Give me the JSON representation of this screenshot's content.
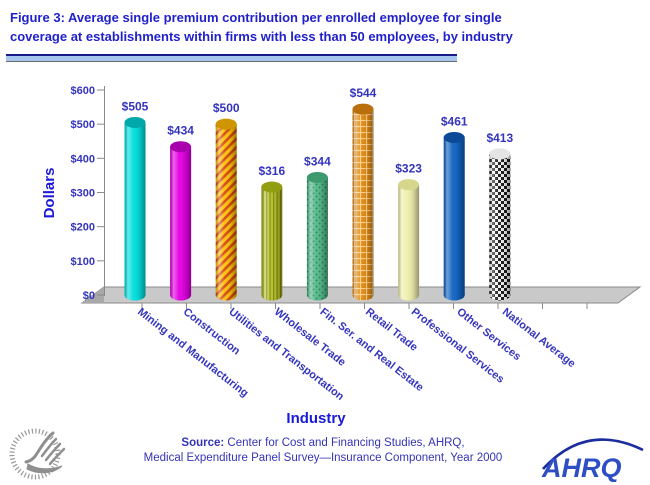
{
  "title": {
    "line1": "Figure 3: Average single premium contribution per enrolled employee for single",
    "line2": "coverage at establishments within firms with less than 50 employees, by industry"
  },
  "chart_data": {
    "type": "bar",
    "title": "Average single premium contribution per enrolled employee, firms with less than 50 employees, by industry",
    "xlabel": "Industry",
    "ylabel": "Dollars",
    "ylim": [
      0,
      600
    ],
    "ytick_step": 100,
    "ytick_labels": [
      "$0",
      "$100",
      "$200",
      "$300",
      "$400",
      "$500",
      "$600"
    ],
    "grid": false,
    "legend": "none",
    "categories": [
      "Mining and Manufacturing",
      "Construction",
      "Utilities and Transportation",
      "Wholesale Trade",
      "Fin. Ser. and Real Estate",
      "Retail Trade",
      "Professional Services",
      "Other Services",
      "National Average"
    ],
    "values": [
      505,
      434,
      500,
      316,
      344,
      544,
      323,
      461,
      413
    ],
    "value_labels": [
      "$505",
      "$434",
      "$500",
      "$316",
      "$344",
      "$544",
      "$323",
      "$461",
      "$413"
    ],
    "bar_styles": [
      {
        "pattern": "solid",
        "fill": "#00DEDE",
        "top": "#00A8AC",
        "pattern_color": ""
      },
      {
        "pattern": "solid",
        "fill": "#E300E3",
        "top": "#A800AC",
        "pattern_color": ""
      },
      {
        "pattern": "diagonal",
        "fill": "#FFC10A",
        "top": "#CE9500",
        "pattern_color": "#D64A10"
      },
      {
        "pattern": "vertical",
        "fill": "#B8C22B",
        "top": "#939D12",
        "pattern_color": "#848C10"
      },
      {
        "pattern": "dots",
        "fill": "#55BA8C",
        "top": "#3D9A6D",
        "pattern_color": "#2E8A60"
      },
      {
        "pattern": "grid",
        "fill": "#E08A12",
        "top": "#BA700A",
        "pattern_color": "#FFCE8A"
      },
      {
        "pattern": "solid",
        "fill": "#EFEFAD",
        "top": "#D6D68C",
        "pattern_color": ""
      },
      {
        "pattern": "solid",
        "fill": "#1263C2",
        "top": "#0C4A98",
        "pattern_color": ""
      },
      {
        "pattern": "checker",
        "fill": "#F5F5F5",
        "top": "#E4E4E4",
        "pattern_color": "#1A1A1A"
      }
    ]
  },
  "source": {
    "prefix": "Source:",
    "line1": " Center for Cost and Financing Studies, AHRQ,",
    "line2": "Medical Expenditure Panel Survey—Insurance Component, Year 2000"
  },
  "logos": {
    "ahrq_text": "AHRQ",
    "hhs_icon": "hhs-eagle-logo"
  },
  "colors": {
    "title_blue": "#2121CC",
    "label_blue": "#3434BE",
    "axis_title_blue": "#1A1AD8",
    "floor_gray": "#C9C9C9",
    "floor_side_gray": "#A8A8A8",
    "axis_line_gray": "#8A8A8A",
    "underline_blue": "#1A1A8C",
    "underline_fill": "#A6C6EE",
    "ahrq_blue": "#2E4FC4",
    "hhs_gray": "#8F8F8F"
  }
}
